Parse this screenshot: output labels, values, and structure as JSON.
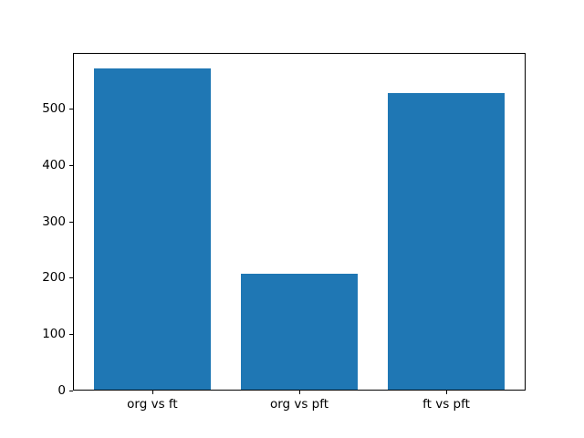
{
  "figure": {
    "background_color": "#ffffff",
    "frame_color": "#000000",
    "text_color": "#000000"
  },
  "chart_data": {
    "type": "bar",
    "title": "",
    "xlabel": "",
    "ylabel": "",
    "categories": [
      "org vs ft",
      "org vs pft",
      "ft vs pft"
    ],
    "values": [
      572,
      207,
      528
    ],
    "bar_color": "#1f77b4",
    "bar_width_fraction": 0.8,
    "yticks": [
      0,
      100,
      200,
      300,
      400,
      500
    ],
    "ylim": [
      0,
      600.6
    ],
    "xlim": [
      -0.54,
      2.54
    ],
    "grid": false,
    "legend_position": "none"
  }
}
